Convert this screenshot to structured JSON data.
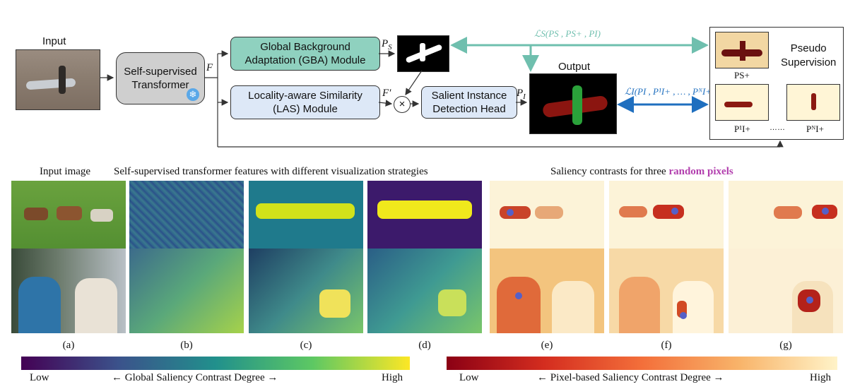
{
  "diagram": {
    "input_label": "Input",
    "transformer_label": "Self-supervised\nTransformer",
    "feature_label": "F",
    "gba_label": "Global Background\nAdaptation (GBA) Module",
    "las_label": "Locality-aware Similarity\n(LAS) Module",
    "sidh_label": "Salient Instance\nDetection Head",
    "ps_label": "P",
    "ps_sub": "S",
    "fprime_label": "F′",
    "pi_label": "P",
    "pi_sub": "I",
    "output_label": "Output",
    "loss_s": "ℒS(PS , PS+ , PI)",
    "loss_i": "ℒI(PI , P¹I+ , … , PᴺI+)",
    "pseudo_label": "Pseudo\nSupervision",
    "ps_plus": "PS+",
    "pi1": "P¹I+",
    "dots": "……",
    "pin": "PᴺI+",
    "colors": {
      "teal": "#6fbfae",
      "blue": "#1f6fbf",
      "teal_box": "#8fd1bf",
      "blue_box": "#dde8f7",
      "gray_box": "#cfcfcf"
    }
  },
  "bottom": {
    "heading_input": "Input image",
    "heading_features": "Self-supervised transformer features with different visualization strategies",
    "heading_contrast_prefix": "Saliency contrasts for three ",
    "heading_contrast_em": "random pixels",
    "captions": [
      "(a)",
      "(b)",
      "(c)",
      "(d)",
      "(e)",
      "(f)",
      "(g)"
    ],
    "colorbar_left": {
      "low": "Low",
      "title": "← Global Saliency Contrast Degree →",
      "high": "High"
    },
    "colorbar_right": {
      "low": "Low",
      "title": "← Pixel-based Saliency Contrast Degree →",
      "high": "High"
    },
    "colors": {
      "em": "#b23fae"
    }
  }
}
